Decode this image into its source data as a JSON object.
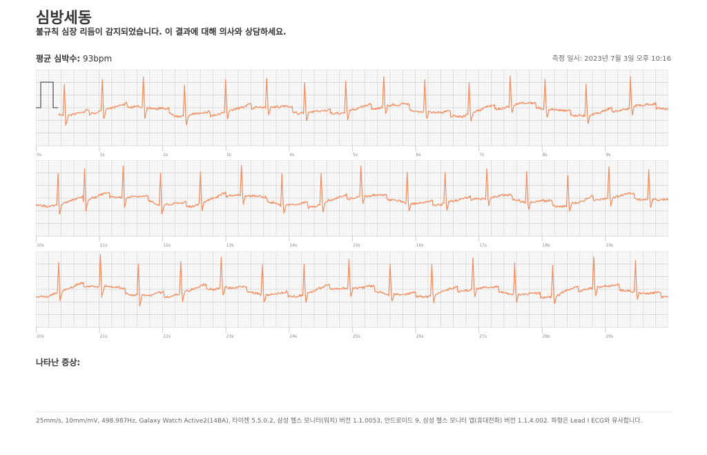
{
  "header": {
    "title": "심방세동",
    "subtitle": "불규칙 심장 리듬이 감지되었습니다. 이 결과에 대해 의사와 상담하세요.",
    "avg_hr_label": "평균 심박수:",
    "avg_hr_value": "93bpm",
    "measured_at": "측정 일시: 2023년 7월 3일 오후 10:16"
  },
  "symptoms_label": "나타난 증상:",
  "footer": "25mm/s, 10mm/mV, 498.987Hz, Galaxy Watch Active2(14BA), 타이젠 5.5.0.2, 삼성 헬스 모니터(워치) 버전 1.1.0053, 안드로이드 9, 삼성 헬스 모니터 앱(휴대전화) 버전 1.1.4.002. 파형은 Lead I ECG와 유사합니다.",
  "colors": {
    "trace": "#f58a5a",
    "grid_major": "#cfcfcf",
    "grid_minor": "#ececec",
    "calibration": "#555555"
  },
  "chart_data": {
    "type": "line",
    "title": "ECG",
    "x_unit": "s",
    "strips": [
      {
        "start": 0,
        "end": 10,
        "tick_labels": [
          "0s",
          "1s",
          "2s",
          "3s",
          "4s",
          "5s",
          "6s",
          "7s",
          "8s",
          "9s"
        ],
        "r_peaks": [
          0.45,
          1.05,
          1.7,
          2.35,
          3.0,
          3.65,
          4.25,
          4.9,
          5.5,
          6.15,
          6.85,
          7.5,
          8.05,
          8.7,
          9.4
        ],
        "calibration_pulse": true
      },
      {
        "start": 10,
        "end": 20,
        "tick_labels": [
          "10s",
          "11s",
          "12s",
          "13s",
          "14s",
          "15s",
          "16s",
          "17s",
          "18s",
          "19s"
        ],
        "r_peaks": [
          10.35,
          10.77,
          11.38,
          11.97,
          12.6,
          13.25,
          13.89,
          14.51,
          15.14,
          15.87,
          16.47,
          17.13,
          17.76,
          18.41,
          19.06,
          19.69
        ]
      },
      {
        "start": 20,
        "end": 30,
        "tick_labels": [
          "20s",
          "21s",
          "22s",
          "23s",
          "24s",
          "25s",
          "26s",
          "27s",
          "28s",
          "29s"
        ],
        "r_peaks": [
          20.36,
          21.02,
          21.62,
          22.29,
          22.93,
          23.58,
          24.24,
          24.95,
          25.6,
          26.26,
          26.91,
          27.57,
          28.17,
          28.82,
          29.48
        ]
      }
    ]
  }
}
